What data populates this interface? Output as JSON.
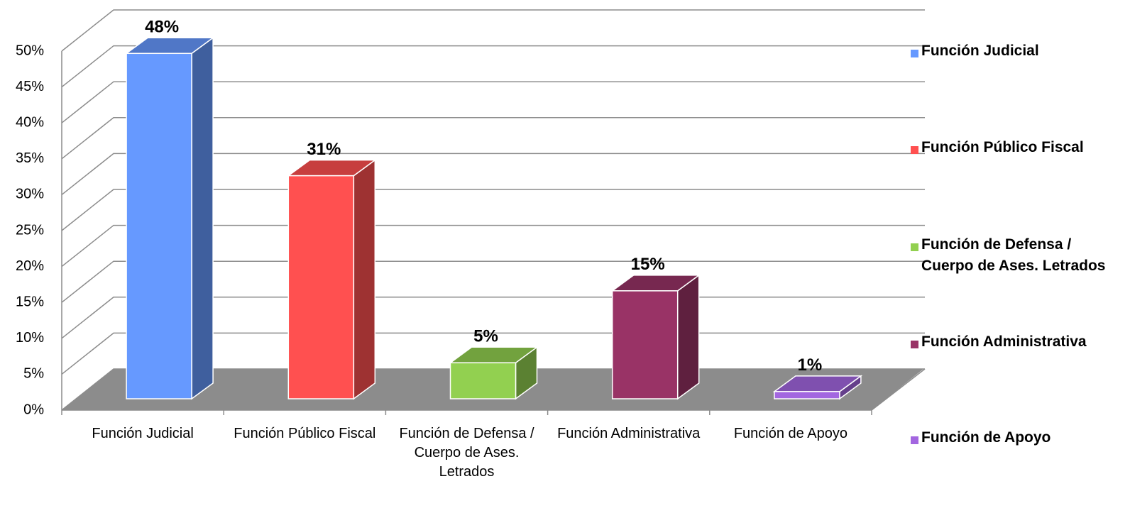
{
  "chart_data": {
    "type": "bar3d",
    "categories": [
      "Función Judicial",
      "Función Público Fiscal",
      "Función de Defensa / Cuerpo de Ases. Letrados",
      "Función Administrativa",
      "Función de Apoyo"
    ],
    "values": [
      48,
      31,
      5,
      15,
      1
    ],
    "value_labels": [
      "48%",
      "31%",
      "5%",
      "15%",
      "1%"
    ],
    "colors": [
      "#6699ff",
      "#ff5050",
      "#92d050",
      "#993366",
      "#a366e0"
    ],
    "ylim": [
      0,
      50
    ],
    "yticks": [
      {
        "value": 0,
        "label": "0%"
      },
      {
        "value": 5,
        "label": "5%"
      },
      {
        "value": 10,
        "label": "10%"
      },
      {
        "value": 15,
        "label": "15%"
      },
      {
        "value": 20,
        "label": "20%"
      },
      {
        "value": 25,
        "label": "25%"
      },
      {
        "value": 30,
        "label": "30%"
      },
      {
        "value": 35,
        "label": "35%"
      },
      {
        "value": 40,
        "label": "40%"
      },
      {
        "value": 45,
        "label": "45%"
      },
      {
        "value": 50,
        "label": "50%"
      }
    ],
    "grid": true,
    "legend": "right"
  }
}
